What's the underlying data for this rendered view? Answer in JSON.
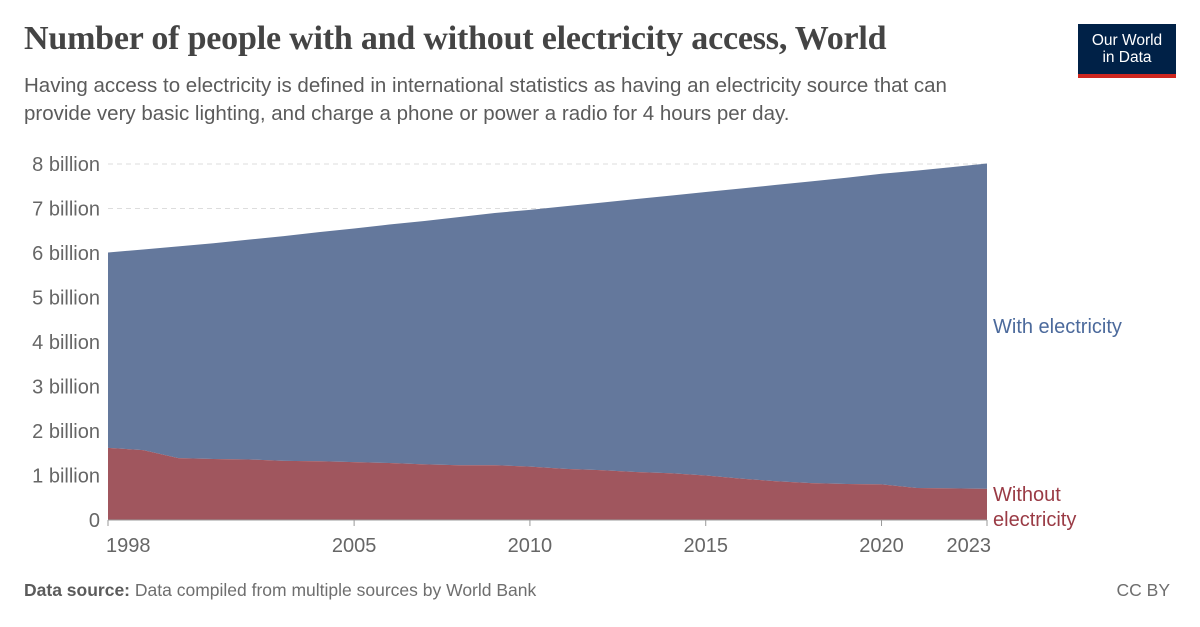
{
  "header": {
    "title": "Number of people with and without electricity access, World",
    "subtitle": "Having access to electricity is defined in international statistics as having an electricity source that can provide very basic lighting, and charge a phone or power a radio for 4 hours per day."
  },
  "logo": {
    "line1": "Our World",
    "line2": "in Data"
  },
  "footer": {
    "source_label": "Data source:",
    "source_text": "Data compiled from multiple sources by World Bank",
    "license": "CC BY"
  },
  "colors": {
    "with": "#64789c",
    "without": "#a0565e",
    "with_label": "#4c6a9c",
    "without_label": "#9a3b45"
  },
  "chart_data": {
    "type": "area",
    "stacked": true,
    "title": "Number of people with and without electricity access, World",
    "xlim": [
      1998,
      2023
    ],
    "ylim": [
      0,
      8000000000
    ],
    "x_ticks": [
      1998,
      2005,
      2010,
      2015,
      2020,
      2023
    ],
    "x_tick_labels": [
      "1998",
      "2005",
      "2010",
      "2015",
      "2020",
      "2023"
    ],
    "y_ticks": [
      0,
      1000000000,
      2000000000,
      3000000000,
      4000000000,
      5000000000,
      6000000000,
      7000000000,
      8000000000
    ],
    "y_tick_labels": [
      "0",
      "1 billion",
      "2 billion",
      "3 billion",
      "4 billion",
      "5 billion",
      "6 billion",
      "7 billion",
      "8 billion"
    ],
    "grid": "horizontal-dashed",
    "x": [
      1998,
      1999,
      2000,
      2001,
      2002,
      2003,
      2004,
      2005,
      2006,
      2007,
      2008,
      2009,
      2010,
      2011,
      2012,
      2013,
      2014,
      2015,
      2016,
      2017,
      2018,
      2019,
      2020,
      2021,
      2022,
      2023
    ],
    "series": [
      {
        "name": "Without electricity",
        "label_lines": [
          "Without",
          "electricity"
        ],
        "values": [
          1620000000,
          1570000000,
          1390000000,
          1370000000,
          1360000000,
          1330000000,
          1320000000,
          1300000000,
          1280000000,
          1250000000,
          1230000000,
          1230000000,
          1200000000,
          1150000000,
          1120000000,
          1080000000,
          1050000000,
          1000000000,
          930000000,
          870000000,
          830000000,
          810000000,
          800000000,
          720000000,
          710000000,
          700000000
        ]
      },
      {
        "name": "With electricity",
        "label_lines": [
          "With electricity"
        ],
        "values": [
          4390000000,
          4510000000,
          4760000000,
          4850000000,
          4940000000,
          5050000000,
          5150000000,
          5250000000,
          5360000000,
          5470000000,
          5580000000,
          5670000000,
          5770000000,
          5900000000,
          6010000000,
          6130000000,
          6240000000,
          6370000000,
          6520000000,
          6660000000,
          6780000000,
          6880000000,
          6980000000,
          7130000000,
          7220000000,
          7310000000
        ]
      }
    ]
  }
}
